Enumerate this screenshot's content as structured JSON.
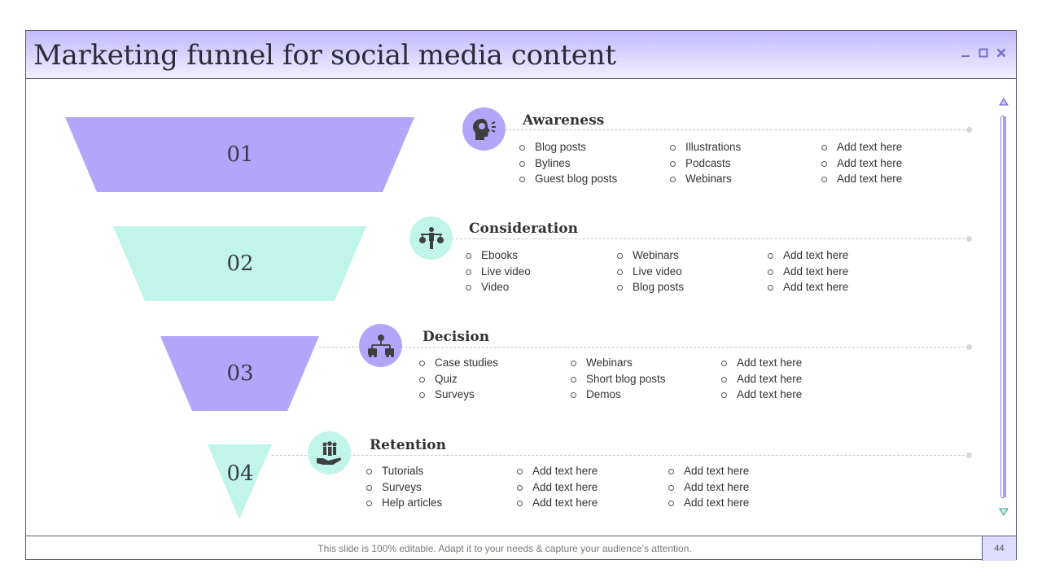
{
  "window": {
    "title": "Marketing funnel for social media content",
    "controls": [
      {
        "name": "minimize",
        "icon": "minimize-icon"
      },
      {
        "name": "maximize",
        "icon": "maximize-icon"
      },
      {
        "name": "close",
        "icon": "close-icon"
      }
    ]
  },
  "colors": {
    "purple": "#b3a6fa",
    "mint": "#c1f5ea",
    "title_gradient_top": "#c2b9fb",
    "icon_dark": "#3f3f3f"
  },
  "stages": [
    {
      "number": "01",
      "title": "Awareness",
      "icon": "lightbulb-head-icon",
      "color": "#b3a6fa",
      "columns": [
        [
          "Blog posts",
          "Bylines",
          "Guest blog posts"
        ],
        [
          "Illustrations",
          "Podcasts",
          "Webinars"
        ],
        [
          "Add text here",
          "Add text here",
          "Add text here"
        ]
      ]
    },
    {
      "number": "02",
      "title": "Consideration",
      "icon": "person-balance-icon",
      "color": "#c1f5ea",
      "columns": [
        [
          "Ebooks",
          "Live video",
          "Video"
        ],
        [
          "Webinars",
          "Live video",
          "Blog posts"
        ],
        [
          "Add text here",
          "Add text here",
          "Add text here"
        ]
      ]
    },
    {
      "number": "03",
      "title": "Decision",
      "icon": "decision-tree-icon",
      "color": "#b3a6fa",
      "columns": [
        [
          "Case studies",
          "Quiz",
          "Surveys"
        ],
        [
          "Webinars",
          "Short blog posts",
          "Demos"
        ],
        [
          "Add text here",
          "Add text here",
          "Add text here"
        ]
      ]
    },
    {
      "number": "04",
      "title": "Retention",
      "icon": "hand-people-icon",
      "color": "#c1f5ea",
      "columns": [
        [
          "Tutorials",
          "Surveys",
          "Help articles"
        ],
        [
          "Add text here",
          "Add text here",
          "Add text here"
        ],
        [
          "Add text here",
          "Add text here",
          "Add text here"
        ]
      ]
    }
  ],
  "footer": {
    "text": "This slide is 100% editable. Adapt it to your needs & capture your audience’s attention.",
    "page_number": "44"
  },
  "scrollbar": {
    "up_icon": "scroll-up-icon",
    "down_icon": "scroll-down-icon"
  }
}
